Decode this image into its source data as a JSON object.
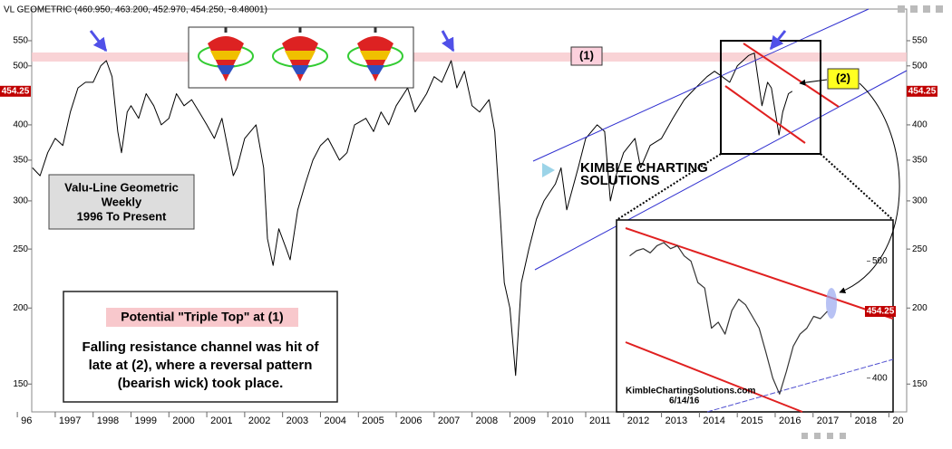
{
  "chart_data": [
    {
      "type": "line",
      "title": "VL GEOMETRIC (460.950, 463.200, 452.970, 454.250, -8.48001)",
      "x": [
        1996.4,
        1996.6,
        1996.8,
        1997.0,
        1997.2,
        1997.4,
        1997.6,
        1997.8,
        1998.0,
        1998.2,
        1998.35,
        1998.5,
        1998.65,
        1998.75,
        1998.9,
        1999.0,
        1999.2,
        1999.4,
        1999.6,
        1999.8,
        2000.0,
        2000.2,
        2000.4,
        2000.6,
        2000.8,
        2001.0,
        2001.2,
        2001.4,
        2001.7,
        2001.8,
        2002.0,
        2002.3,
        2002.5,
        2002.6,
        2002.75,
        2002.9,
        2003.1,
        2003.2,
        2003.4,
        2003.6,
        2003.8,
        2004.0,
        2004.2,
        2004.5,
        2004.7,
        2004.9,
        2005.2,
        2005.4,
        2005.6,
        2005.8,
        2006.0,
        2006.3,
        2006.5,
        2006.8,
        2007.0,
        2007.2,
        2007.45,
        2007.6,
        2007.8,
        2008.0,
        2008.2,
        2008.45,
        2008.6,
        2008.75,
        2008.85,
        2009.0,
        2009.15,
        2009.3,
        2009.5,
        2009.7,
        2009.9,
        2010.2,
        2010.35,
        2010.5,
        2010.8,
        2011.0,
        2011.3,
        2011.5,
        2011.65,
        2011.8,
        2012.0,
        2012.3,
        2012.45,
        2012.7,
        2013.0,
        2013.3,
        2013.6,
        2013.9,
        2014.2,
        2014.4,
        2014.6,
        2014.8,
        2015.0,
        2015.3,
        2015.45,
        2015.65,
        2015.8,
        2015.9,
        2016.1,
        2016.2,
        2016.35,
        2016.45
      ],
      "values": [
        340,
        330,
        360,
        380,
        370,
        420,
        460,
        470,
        470,
        500,
        510,
        480,
        390,
        360,
        420,
        430,
        410,
        450,
        430,
        400,
        410,
        450,
        430,
        440,
        420,
        400,
        380,
        410,
        330,
        340,
        380,
        400,
        340,
        260,
        235,
        270,
        250,
        240,
        290,
        320,
        350,
        370,
        380,
        350,
        360,
        400,
        410,
        390,
        420,
        400,
        430,
        460,
        420,
        450,
        480,
        470,
        510,
        460,
        490,
        430,
        420,
        440,
        390,
        280,
        220,
        200,
        155,
        220,
        250,
        280,
        300,
        320,
        340,
        290,
        340,
        380,
        400,
        390,
        300,
        330,
        360,
        380,
        340,
        370,
        380,
        410,
        440,
        460,
        480,
        490,
        480,
        470,
        500,
        520,
        525,
        430,
        470,
        460,
        385,
        420,
        450,
        454.25
      ],
      "color": "#000000",
      "log_y": true,
      "xlim": [
        1996.38,
        2019.47
      ],
      "xticks": [
        {
          "value": 1996,
          "label": "96"
        },
        1997,
        1998,
        1999,
        2000,
        2001,
        2002,
        2003,
        2004,
        2005,
        2006,
        2007,
        2008,
        2009,
        2010,
        2011,
        2012,
        2013,
        2014,
        2015,
        2016,
        2017,
        2018,
        {
          "value": 2019,
          "label": "20"
        }
      ],
      "ylim": [
        135,
        620
      ],
      "yticks": [
        150,
        200,
        250,
        300,
        350,
        400,
        500,
        550
      ],
      "info_box": [
        "Valu-Line Geometric",
        "Weekly",
        "1996 To Present"
      ],
      "callout_title": "Potential \"Triple Top\" at (1)",
      "callout_text": [
        "Falling resistance channel was hit of",
        "late at (2), where a reversal pattern",
        "(bearish wick) took place."
      ],
      "marker_1": "(1)",
      "marker_2": "(2)",
      "watermark": [
        "KIMBLE CHARTING",
        "SOLUTIONS"
      ]
    },
    {
      "type": "line",
      "x": [
        2015.0,
        2015.05,
        2015.1,
        2015.15,
        2015.2,
        2015.25,
        2015.3,
        2015.35,
        2015.4,
        2015.45,
        2015.5,
        2015.55,
        2015.6,
        2015.65,
        2015.7,
        2015.75,
        2015.8,
        2015.85,
        2015.9,
        2015.95,
        2016.0,
        2016.05,
        2016.1,
        2016.15,
        2016.2,
        2016.25,
        2016.3,
        2016.35,
        2016.4,
        2016.45
      ],
      "values": [
        505,
        510,
        512,
        508,
        515,
        518,
        512,
        515,
        505,
        500,
        480,
        475,
        440,
        445,
        435,
        455,
        465,
        460,
        450,
        440,
        420,
        400,
        388,
        405,
        425,
        435,
        440,
        450,
        448,
        454.25
      ],
      "color": "#333333",
      "log_y": true,
      "xlim": [
        2014.97,
        2016.7
      ],
      "ylim": [
        375,
        539
      ],
      "yticks": [
        400,
        500
      ],
      "footer": [
        "KimbleChartingSolutions.com",
        "6/14/16"
      ]
    }
  ]
}
